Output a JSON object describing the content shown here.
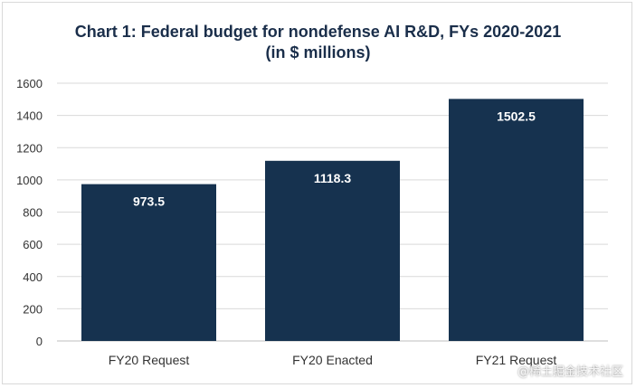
{
  "chart_data": {
    "type": "bar",
    "title": "Chart 1: Federal budget for nondefense AI R&D, FYs 2020-2021",
    "subtitle": "(in $ millions)",
    "categories": [
      "FY20 Request",
      "FY20 Enacted",
      "FY21 Request"
    ],
    "values": [
      973.5,
      1118.3,
      1502.5
    ],
    "data_labels": [
      "973.5",
      "1118.3",
      "1502.5"
    ],
    "ylim": [
      0,
      1600
    ],
    "yticks": [
      "0",
      "200",
      "400",
      "600",
      "800",
      "1000",
      "1200",
      "1400",
      "1600"
    ],
    "grid": true,
    "legend": "none",
    "bar_color": "#16324f"
  },
  "watermark": "@稀土掘金技术社区"
}
